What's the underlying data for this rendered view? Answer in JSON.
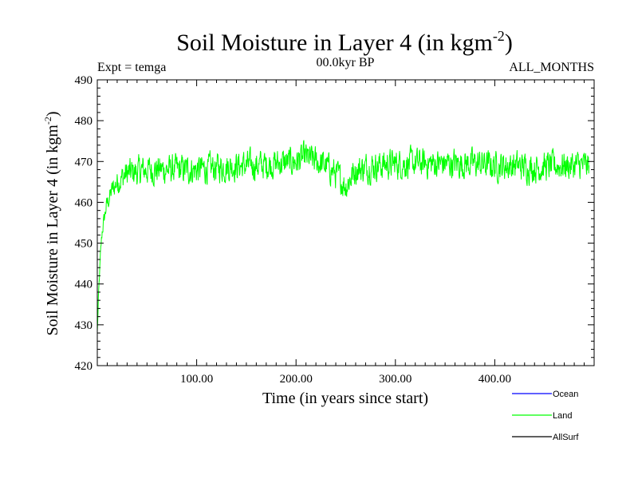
{
  "chart_data": {
    "type": "line",
    "title": "Soil Moisture in Layer 4 (in kgm",
    "title_superscript": "-2",
    "title_suffix": ")",
    "subtitle_left": "Expt = temga",
    "subtitle_center": "00.0kyr BP",
    "subtitle_right": "ALL_MONTHS",
    "xlabel": "Time (in years since start)",
    "ylabel": "Soil Moisture in Layer 4 (in kgm",
    "ylabel_superscript": "-2",
    "ylabel_suffix": ")",
    "xlim": [
      0,
      500
    ],
    "ylim": [
      420,
      490
    ],
    "x_ticks": [
      100,
      200,
      300,
      400
    ],
    "x_tick_labels": [
      "100.00",
      "200.00",
      "300.00",
      "400.00"
    ],
    "y_ticks": [
      420,
      430,
      440,
      450,
      460,
      470,
      480,
      490
    ],
    "y_tick_labels": [
      "420",
      "430",
      "440",
      "450",
      "460",
      "470",
      "480",
      "490"
    ],
    "grid": false,
    "legend_position": "bottom-right",
    "series": [
      {
        "name": "Ocean",
        "color": "#0000ff",
        "x": [],
        "y": []
      },
      {
        "name": "Land",
        "color": "#00ff00",
        "x": [
          0,
          1,
          2,
          3,
          4,
          5,
          7,
          9,
          12,
          15,
          20,
          25,
          30,
          40,
          50,
          60,
          70,
          80,
          90,
          100,
          120,
          140,
          160,
          180,
          200,
          210,
          220,
          230,
          240,
          250,
          260,
          280,
          300,
          320,
          340,
          360,
          380,
          400,
          420,
          440,
          460,
          480,
          495
        ],
        "y": [
          428,
          435,
          441,
          446,
          450,
          453,
          456,
          459,
          461,
          463,
          465,
          466,
          467,
          467.5,
          468,
          468,
          468,
          468,
          468,
          468,
          468.5,
          469,
          469,
          469.5,
          470,
          471,
          470,
          469,
          467,
          464,
          468,
          469,
          469.5,
          469.5,
          469.5,
          469.5,
          469.5,
          469,
          469,
          468.5,
          469,
          469,
          469
        ]
      },
      {
        "name": "AllSurf",
        "color": "#000000",
        "x": [],
        "y": []
      }
    ],
    "noise_amplitude": 5.5
  }
}
